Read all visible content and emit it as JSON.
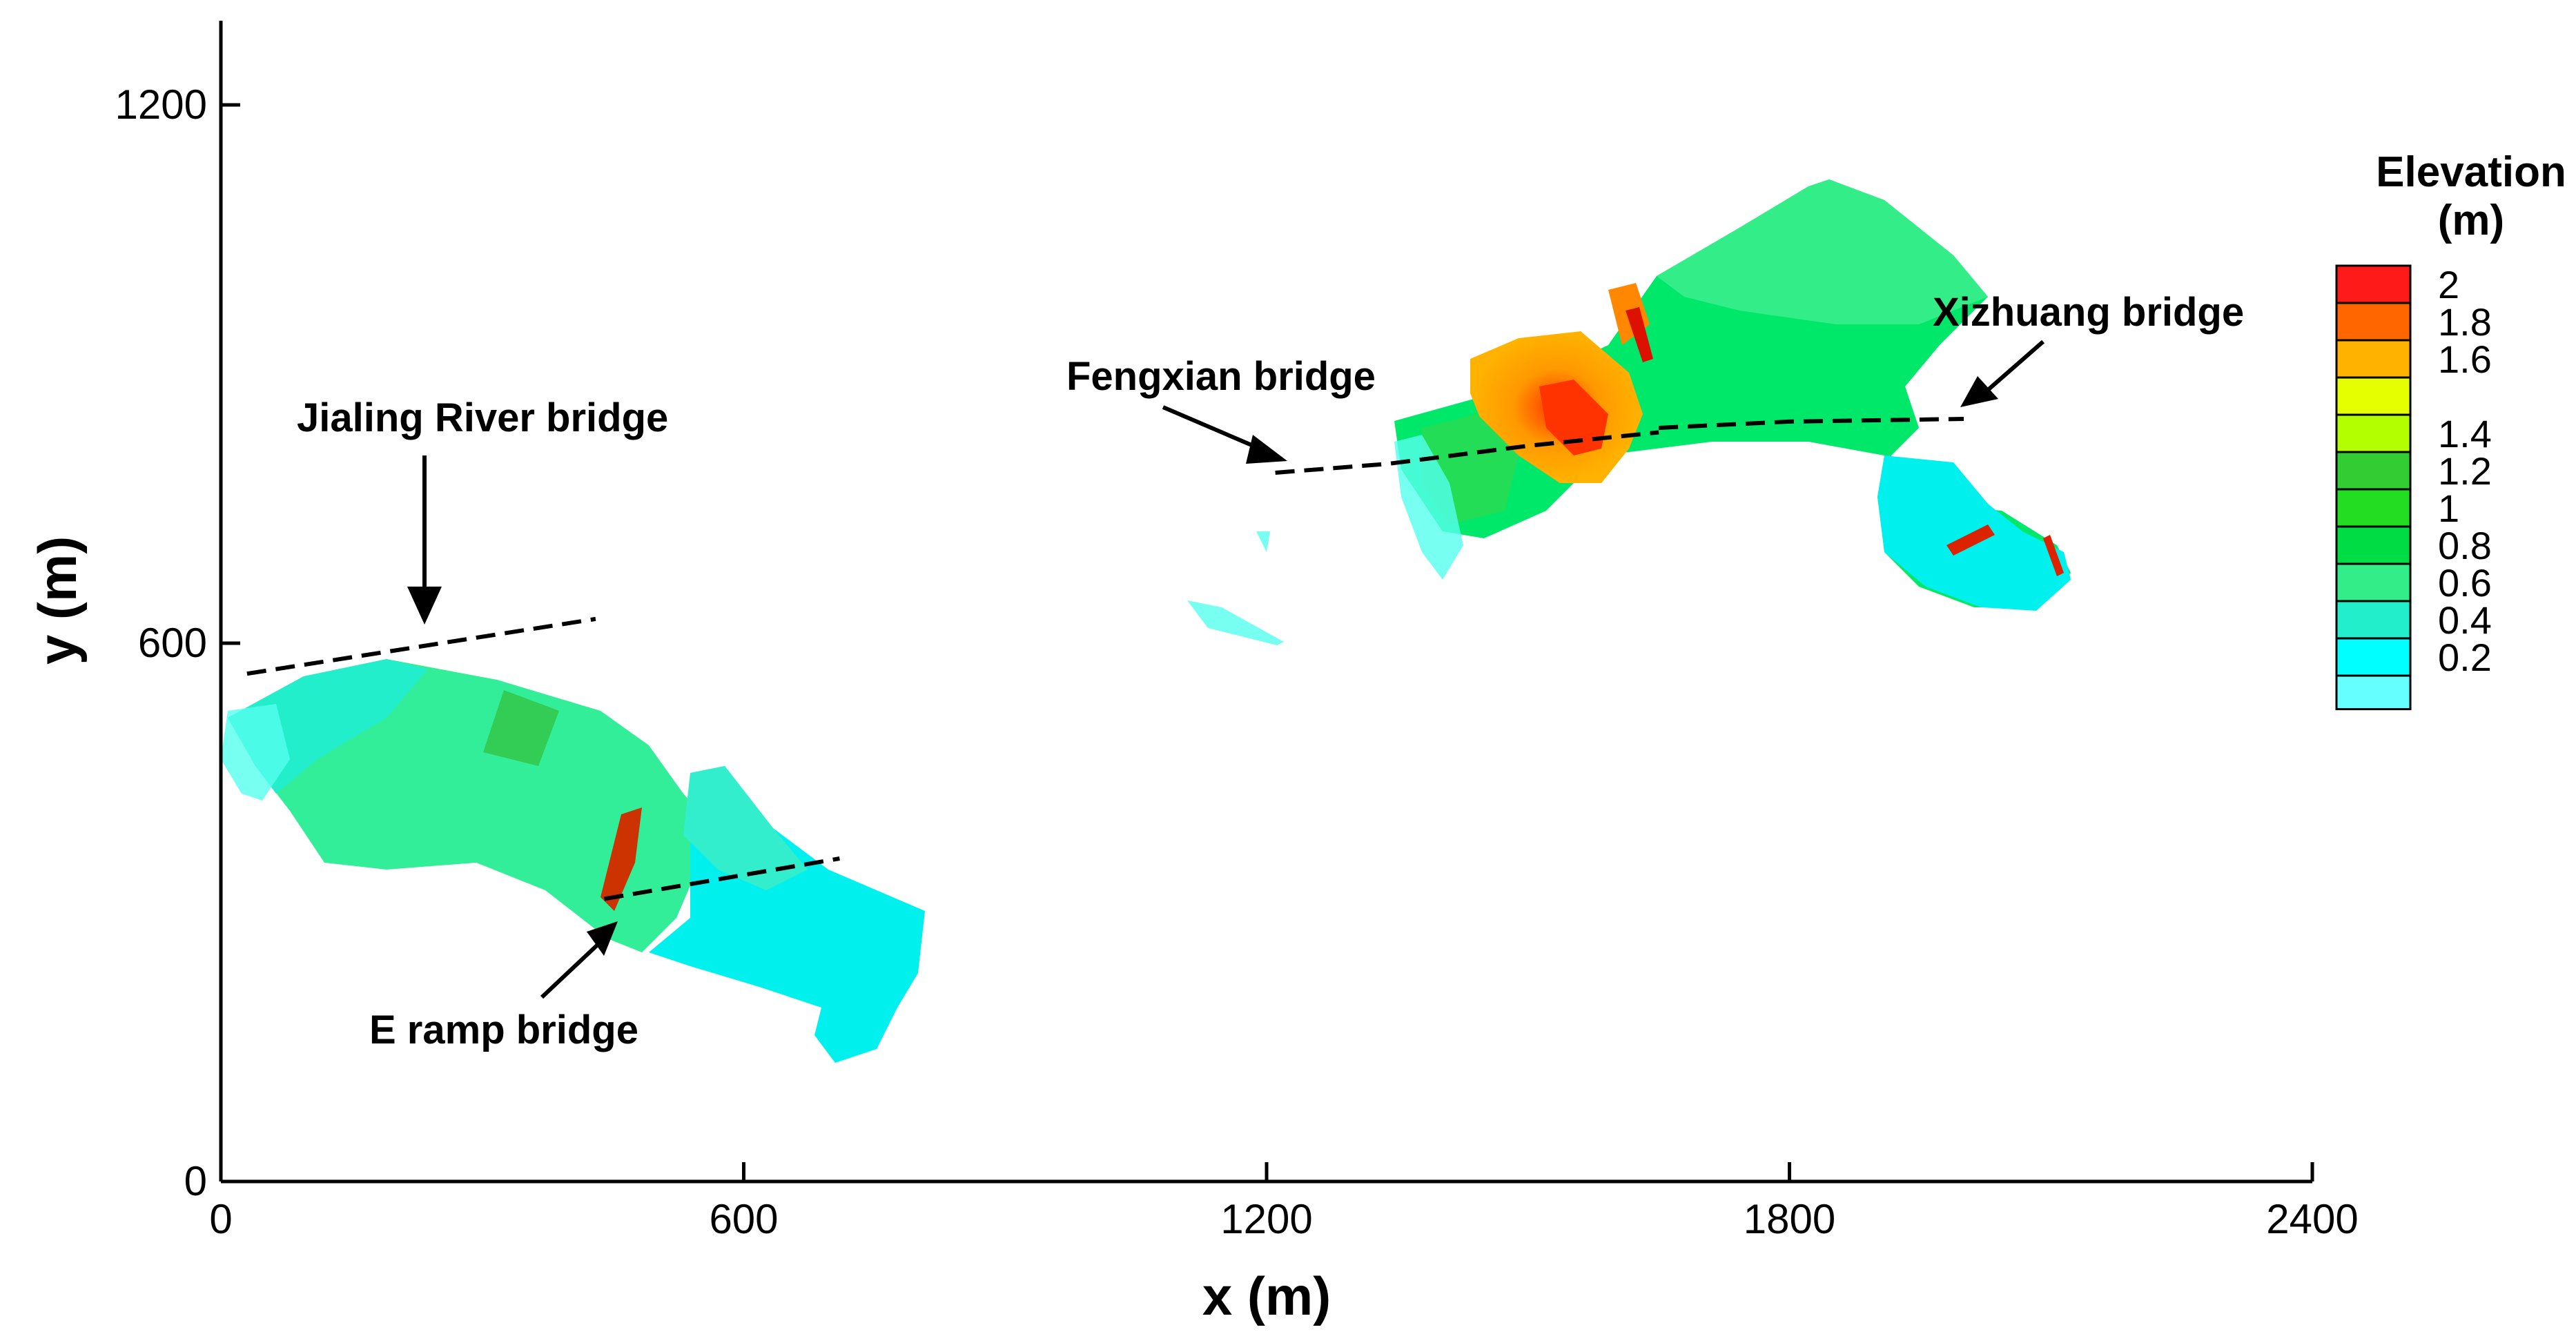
{
  "chart_data": {
    "type": "heatmap",
    "title": "",
    "xlabel": "x (m)",
    "ylabel": "y (m)",
    "xlim": [
      0,
      2400
    ],
    "ylim": [
      0,
      1200
    ],
    "x_ticks": [
      0,
      600,
      1200,
      1800,
      2400
    ],
    "y_ticks": [
      0,
      600,
      1200
    ],
    "grid": false,
    "colorbar": {
      "title_line1": "Elevation",
      "title_line2": "(m)",
      "levels": [
        {
          "label": "2",
          "color": "#ff1a1a"
        },
        {
          "label": "1.8",
          "color": "#ff6600"
        },
        {
          "label": "1.6",
          "color": "#ffb300"
        },
        {
          "label": "",
          "color": "#e6ff00"
        },
        {
          "label": "1.4",
          "color": "#b3ff00"
        },
        {
          "label": "1.2",
          "color": "#33cc33"
        },
        {
          "label": "1",
          "color": "#22dd22"
        },
        {
          "label": "0.8",
          "color": "#00dd44"
        },
        {
          "label": "0.6",
          "color": "#33ee88"
        },
        {
          "label": "0.4",
          "color": "#22eecc"
        },
        {
          "label": "0.2",
          "color": "#00ffff"
        }
      ],
      "bottom_color": "#66ffff"
    },
    "annotations": [
      {
        "text": "Jialing River bridge",
        "x": 230,
        "y": 620
      },
      {
        "text": "E ramp bridge",
        "x": 470,
        "y": 300
      },
      {
        "text": "Fengxian bridge",
        "x": 1300,
        "y": 810
      },
      {
        "text": "Xizhuang bridge",
        "x": 1990,
        "y": 865
      }
    ],
    "bridge_lines": [
      {
        "name": "Jialing River bridge",
        "points": [
          [
            30,
            566
          ],
          [
            430,
            627
          ]
        ]
      },
      {
        "name": "E ramp bridge",
        "points": [
          [
            440,
            315
          ],
          [
            710,
            360
          ]
        ]
      },
      {
        "name": "Fengxian bridge",
        "points": [
          [
            1210,
            790
          ],
          [
            1340,
            800
          ],
          [
            1500,
            820
          ],
          [
            1650,
            835
          ]
        ]
      },
      {
        "name": "Xizhuang bridge",
        "points": [
          [
            1650,
            840
          ],
          [
            1800,
            847
          ],
          [
            2000,
            850
          ]
        ]
      }
    ]
  }
}
